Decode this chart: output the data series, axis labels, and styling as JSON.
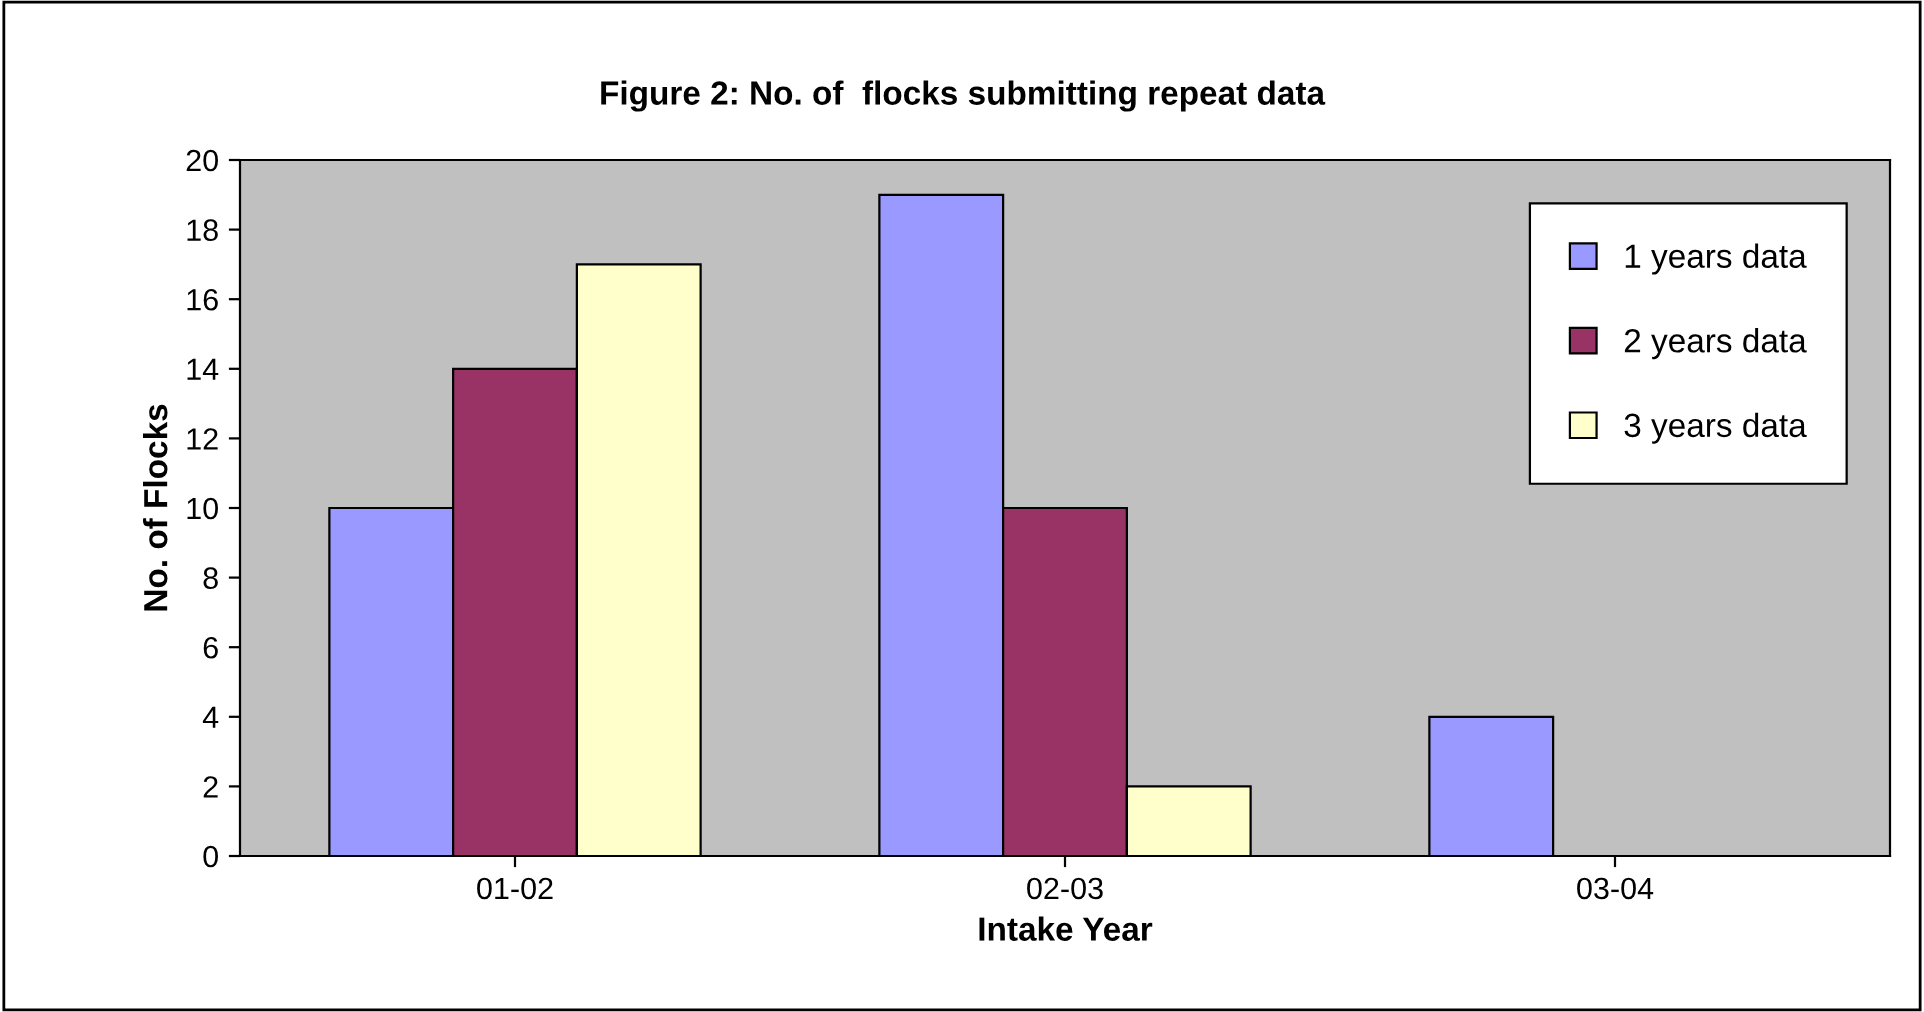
{
  "chart_data": {
    "type": "bar",
    "title": "Figure 2: No. of  flocks submitting repeat data",
    "xlabel": "Intake Year",
    "ylabel": "No. of Flocks",
    "categories": [
      "01-02",
      "02-03",
      "03-04"
    ],
    "series": [
      {
        "name": "1 years data",
        "color": "#9999ff",
        "values": [
          10,
          19,
          4
        ]
      },
      {
        "name": "2 years data",
        "color": "#993366",
        "values": [
          14,
          10,
          null
        ]
      },
      {
        "name": "3 years data",
        "color": "#ffffcc",
        "values": [
          17,
          2,
          null
        ]
      }
    ],
    "ylim": [
      0,
      20
    ],
    "yticks": [
      0,
      2,
      4,
      6,
      8,
      10,
      12,
      14,
      16,
      18,
      20
    ],
    "grid": false,
    "legend": "top right"
  }
}
